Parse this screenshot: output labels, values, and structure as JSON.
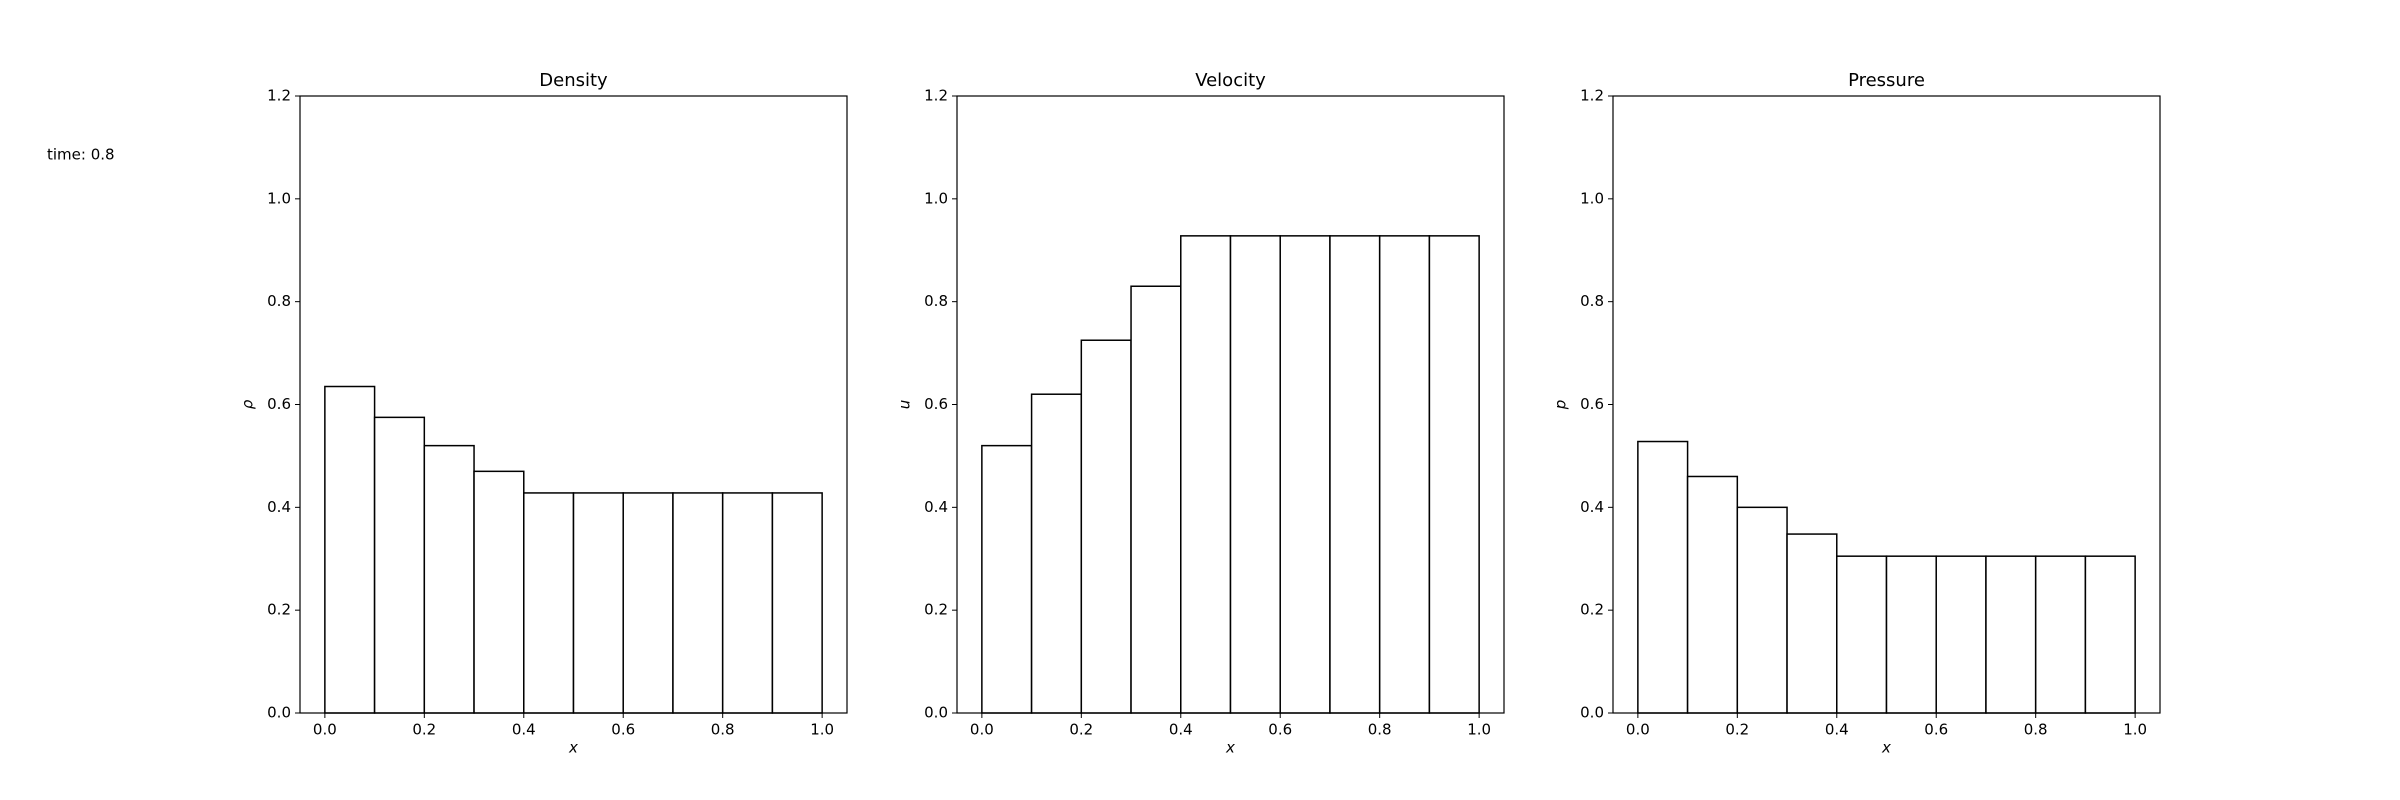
{
  "time_label": "time: 0.8",
  "chart_data": [
    {
      "type": "histogram",
      "title": "Density",
      "xlabel": "x",
      "ylabel": "ρ",
      "bins": [
        0.0,
        0.1,
        0.2,
        0.3,
        0.4,
        0.5,
        0.6,
        0.7,
        0.8,
        0.9,
        1.0
      ],
      "counts": [
        0.635,
        0.575,
        0.52,
        0.47,
        0.428,
        0.428,
        0.428,
        0.428,
        0.428,
        0.428
      ],
      "color": "#ffffff",
      "edgecolor": "#000000",
      "xlim": [
        -0.05,
        1.05
      ],
      "ylim": [
        0,
        1.2
      ],
      "xticks": [
        {
          "value": 0,
          "label": "0.0"
        },
        0.2,
        0.4,
        0.6,
        0.8,
        {
          "value": 1,
          "label": "1.0"
        }
      ],
      "yticks": [
        {
          "value": 0,
          "label": "0.0"
        },
        0.2,
        0.4,
        0.6,
        0.8,
        {
          "value": 1,
          "label": "1.0"
        },
        1.2
      ]
    },
    {
      "type": "histogram",
      "title": "Velocity",
      "xlabel": "x",
      "ylabel": "u",
      "bins": [
        0.0,
        0.1,
        0.2,
        0.3,
        0.4,
        0.5,
        0.6,
        0.7,
        0.8,
        0.9,
        1.0
      ],
      "counts": [
        0.52,
        0.62,
        0.725,
        0.83,
        0.928,
        0.928,
        0.928,
        0.928,
        0.928,
        0.928
      ],
      "color": "#ffffff",
      "edgecolor": "#000000",
      "xlim": [
        -0.05,
        1.05
      ],
      "ylim": [
        0,
        1.2
      ],
      "xticks": [
        {
          "value": 0,
          "label": "0.0"
        },
        0.2,
        0.4,
        0.6,
        0.8,
        {
          "value": 1,
          "label": "1.0"
        }
      ],
      "yticks": [
        {
          "value": 0,
          "label": "0.0"
        },
        0.2,
        0.4,
        0.6,
        0.8,
        {
          "value": 1,
          "label": "1.0"
        },
        1.2
      ]
    },
    {
      "type": "histogram",
      "title": "Pressure",
      "xlabel": "x",
      "ylabel": "p",
      "bins": [
        0.0,
        0.1,
        0.2,
        0.3,
        0.4,
        0.5,
        0.6,
        0.7,
        0.8,
        0.9,
        1.0
      ],
      "counts": [
        0.528,
        0.46,
        0.4,
        0.348,
        0.305,
        0.305,
        0.305,
        0.305,
        0.305,
        0.305
      ],
      "color": "#ffffff",
      "edgecolor": "#000000",
      "xlim": [
        -0.05,
        1.05
      ],
      "ylim": [
        0,
        1.2
      ],
      "xticks": [
        {
          "value": 0,
          "label": "0.0"
        },
        0.2,
        0.4,
        0.6,
        0.8,
        {
          "value": 1,
          "label": "1.0"
        }
      ],
      "yticks": [
        {
          "value": 0,
          "label": "0.0"
        },
        0.2,
        0.4,
        0.6,
        0.8,
        {
          "value": 1,
          "label": "1.0"
        },
        1.2
      ]
    }
  ]
}
